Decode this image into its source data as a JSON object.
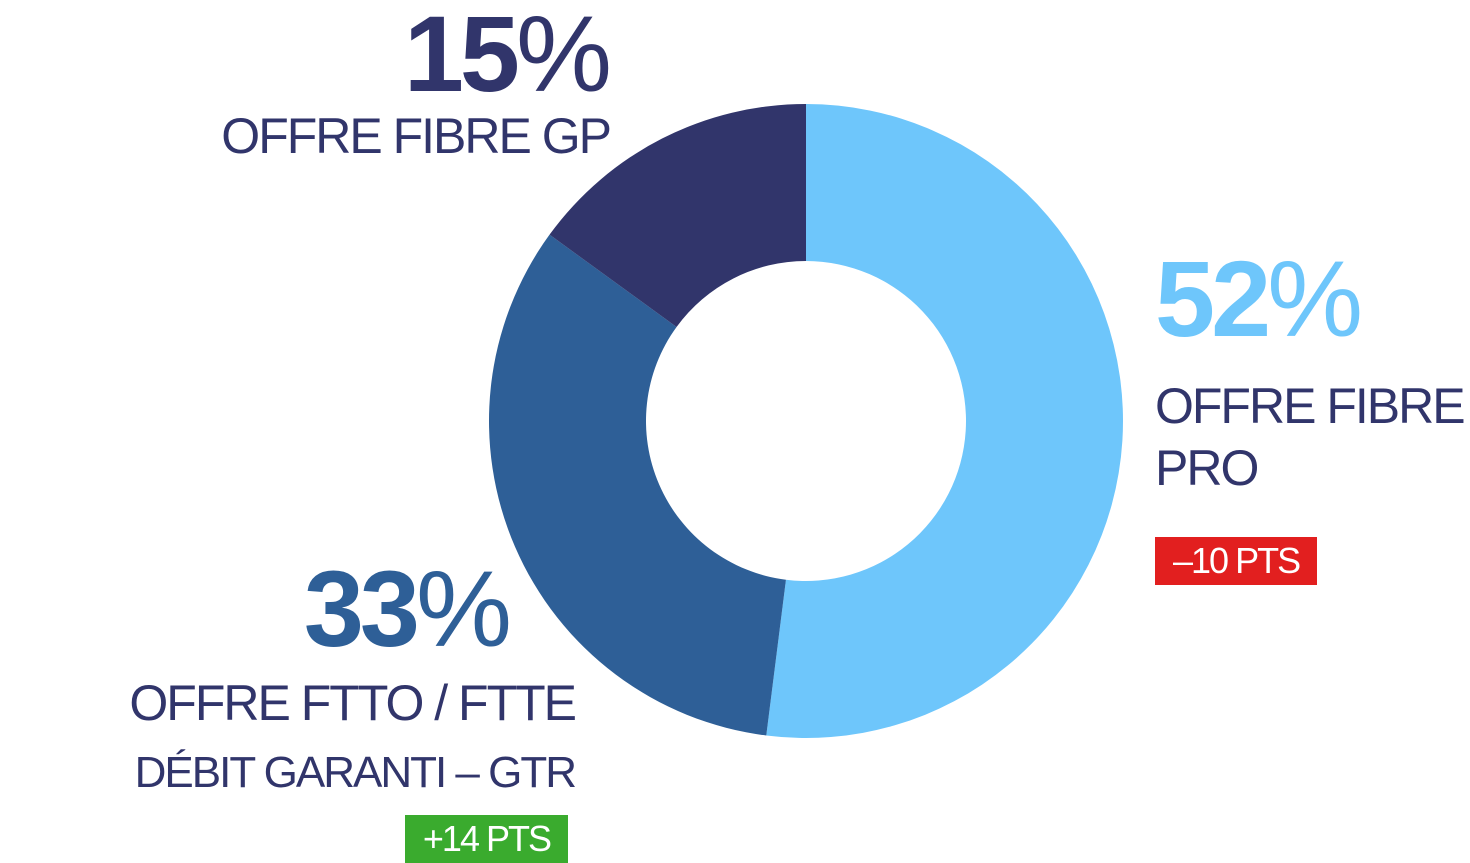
{
  "chart_data": {
    "type": "pie",
    "donut": true,
    "categories": [
      "OFFRE FIBRE PRO",
      "OFFRE FTTO / FTTE",
      "OFFRE FIBRE GP"
    ],
    "values": [
      52,
      33,
      15
    ],
    "value_labels": [
      "52%",
      "33%",
      "15%"
    ],
    "colors": [
      "#6ec6fb",
      "#2e5f97",
      "#31356b"
    ],
    "detail_labels": [
      null,
      "DÉBIT GARANTI – GTR",
      null
    ],
    "change_labels": [
      "–10 PTS",
      "+14 PTS",
      null
    ],
    "change_colors": [
      "#e21f1f",
      "#3aab2e",
      null
    ]
  }
}
